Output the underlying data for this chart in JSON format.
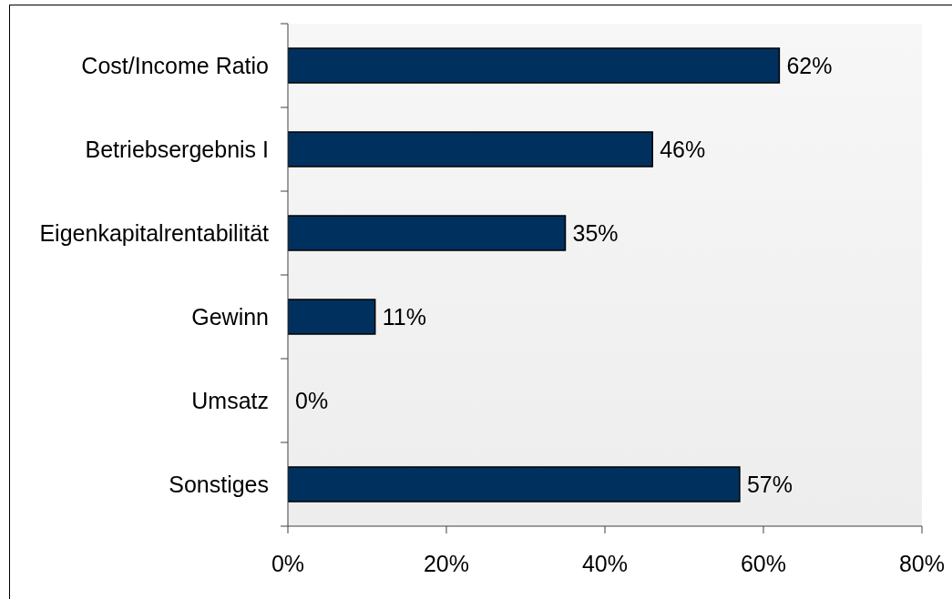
{
  "chart_data": {
    "type": "bar",
    "orientation": "horizontal",
    "categories": [
      "Cost/Income Ratio",
      "Betriebsergebnis I",
      "Eigenkapitalrentabilität",
      "Gewinn",
      "Umsatz",
      "Sonstiges"
    ],
    "values": [
      62,
      46,
      35,
      11,
      0,
      57
    ],
    "value_labels": [
      "62%",
      "46%",
      "35%",
      "11%",
      "0%",
      "57%"
    ],
    "color": "#00305e",
    "xlim": [
      0,
      80
    ],
    "xticks": [
      {
        "value": 0,
        "label": "0%"
      },
      {
        "value": 20,
        "label": "20%"
      },
      {
        "value": 40,
        "label": "40%"
      },
      {
        "value": 60,
        "label": "60%"
      },
      {
        "value": 80,
        "label": "80%"
      }
    ]
  }
}
